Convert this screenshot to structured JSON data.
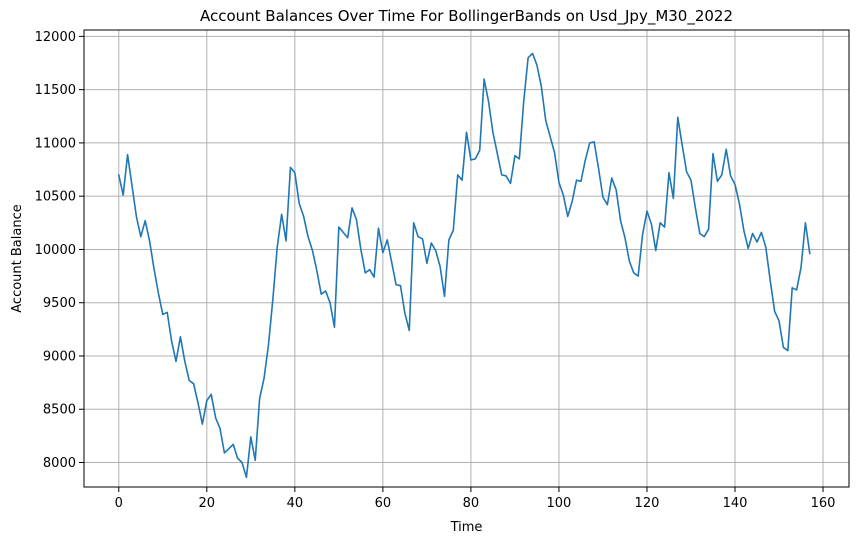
{
  "chart_data": {
    "type": "line",
    "title": "Account Balances Over Time For BollingerBands on Usd_Jpy_M30_2022",
    "xlabel": "Time",
    "ylabel": "Account Balance",
    "xlim": [
      -7.9,
      165.9
    ],
    "ylim": [
      7770,
      12060
    ],
    "xticks": [
      0,
      20,
      40,
      60,
      80,
      100,
      120,
      140,
      160
    ],
    "yticks": [
      8000,
      8500,
      9000,
      9500,
      10000,
      10500,
      11000,
      11500,
      12000
    ],
    "grid": true,
    "line_color": "#1f77b4",
    "series": [
      {
        "values": [
          10700,
          10510,
          10890,
          10600,
          10310,
          10120,
          10270,
          10080,
          9820,
          9590,
          9390,
          9410,
          9140,
          8950,
          9180,
          8950,
          8770,
          8740,
          8560,
          8360,
          8580,
          8640,
          8420,
          8320,
          8090,
          8130,
          8170,
          8040,
          8000,
          7860,
          8240,
          8020,
          8600,
          8790,
          9100,
          9530,
          10020,
          10330,
          10080,
          10770,
          10720,
          10430,
          10310,
          10120,
          9990,
          9800,
          9580,
          9610,
          9500,
          9270,
          10210,
          10160,
          10110,
          10390,
          10280,
          10000,
          9780,
          9810,
          9740,
          10200,
          9970,
          10090,
          9880,
          9670,
          9660,
          9400,
          9240,
          10250,
          10120,
          10100,
          9870,
          10060,
          9990,
          9840,
          9560,
          10090,
          10180,
          10700,
          10650,
          11100,
          10840,
          10850,
          10930,
          11600,
          11390,
          11100,
          10900,
          10700,
          10690,
          10620,
          10880,
          10850,
          11390,
          11800,
          11840,
          11730,
          11530,
          11210,
          11060,
          10910,
          10630,
          10510,
          10310,
          10450,
          10650,
          10640,
          10840,
          11000,
          11010,
          10760,
          10490,
          10420,
          10670,
          10560,
          10270,
          10110,
          9890,
          9780,
          9750,
          10140,
          10360,
          10240,
          9990,
          10250,
          10210,
          10720,
          10480,
          11240,
          10980,
          10730,
          10650,
          10390,
          10150,
          10120,
          10190,
          10900,
          10640,
          10700,
          10940,
          10690,
          10610,
          10430,
          10180,
          10010,
          10150,
          10070,
          10160,
          10020,
          9710,
          9420,
          9330,
          9080,
          9050,
          9640,
          9620,
          9830,
          10250,
          9960
        ]
      }
    ]
  }
}
